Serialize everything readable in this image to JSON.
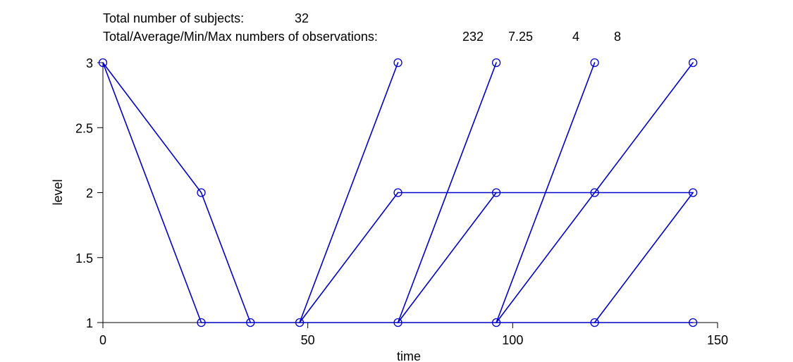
{
  "header": {
    "subjects_label": "Total number of subjects:",
    "subjects_value": "32",
    "obs_label": "Total/Average/Min/Max numbers of observations:",
    "obs_total": "232",
    "obs_avg": "7.25",
    "obs_min": "4",
    "obs_max": "8"
  },
  "chart_data": {
    "type": "line",
    "xlabel": "time",
    "ylabel": "level",
    "xlim": [
      0,
      150
    ],
    "ylim": [
      1,
      3
    ],
    "x_ticks": [
      "0",
      "50",
      "100",
      "150"
    ],
    "y_ticks": [
      "1",
      "1.5",
      "2",
      "2.5",
      "3"
    ],
    "grid": false,
    "line_color": "#0000cc",
    "marker": "open-circle",
    "segments": [
      {
        "x": [
          0,
          24
        ],
        "y": [
          3,
          1
        ]
      },
      {
        "x": [
          0,
          24
        ],
        "y": [
          3,
          2
        ]
      },
      {
        "x": [
          24,
          36
        ],
        "y": [
          2,
          1
        ]
      },
      {
        "x": [
          24,
          144
        ],
        "y": [
          1,
          1
        ]
      },
      {
        "x": [
          48,
          72
        ],
        "y": [
          1,
          3
        ]
      },
      {
        "x": [
          48,
          72
        ],
        "y": [
          1,
          2
        ]
      },
      {
        "x": [
          72,
          144
        ],
        "y": [
          2,
          2
        ]
      },
      {
        "x": [
          72,
          96
        ],
        "y": [
          1,
          3
        ]
      },
      {
        "x": [
          72,
          96
        ],
        "y": [
          1,
          2
        ]
      },
      {
        "x": [
          96,
          120
        ],
        "y": [
          1,
          3
        ]
      },
      {
        "x": [
          96,
          144
        ],
        "y": [
          1,
          3
        ]
      },
      {
        "x": [
          120,
          144
        ],
        "y": [
          1,
          2
        ]
      }
    ],
    "points": [
      {
        "x": 0,
        "y": 3
      },
      {
        "x": 24,
        "y": 2
      },
      {
        "x": 24,
        "y": 1
      },
      {
        "x": 36,
        "y": 1
      },
      {
        "x": 48,
        "y": 1
      },
      {
        "x": 72,
        "y": 3
      },
      {
        "x": 72,
        "y": 2
      },
      {
        "x": 72,
        "y": 1
      },
      {
        "x": 96,
        "y": 3
      },
      {
        "x": 96,
        "y": 2
      },
      {
        "x": 96,
        "y": 1
      },
      {
        "x": 120,
        "y": 3
      },
      {
        "x": 120,
        "y": 2
      },
      {
        "x": 120,
        "y": 1
      },
      {
        "x": 144,
        "y": 3
      },
      {
        "x": 144,
        "y": 2
      },
      {
        "x": 144,
        "y": 1
      }
    ]
  }
}
